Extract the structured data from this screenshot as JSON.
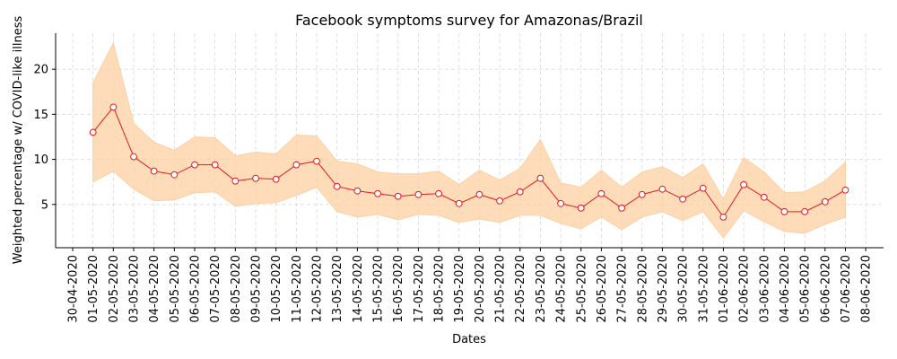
{
  "chart_data": {
    "type": "line",
    "title": "Facebook symptoms survey for Amazonas/Brazil",
    "xlabel": "Dates",
    "ylabel": "Weighted percentage w/ COVID-like illness",
    "x_ticks": [
      "30-04-2020",
      "01-05-2020",
      "02-05-2020",
      "03-05-2020",
      "04-05-2020",
      "05-05-2020",
      "06-05-2020",
      "07-05-2020",
      "08-05-2020",
      "09-05-2020",
      "10-05-2020",
      "11-05-2020",
      "12-05-2020",
      "13-05-2020",
      "14-05-2020",
      "15-05-2020",
      "16-05-2020",
      "17-05-2020",
      "18-05-2020",
      "19-05-2020",
      "20-05-2020",
      "21-05-2020",
      "22-05-2020",
      "23-05-2020",
      "24-05-2020",
      "25-05-2020",
      "26-05-2020",
      "27-05-2020",
      "28-05-2020",
      "29-05-2020",
      "30-05-2020",
      "31-05-2020",
      "01-06-2020",
      "02-06-2020",
      "03-06-2020",
      "04-06-2020",
      "05-06-2020",
      "06-06-2020",
      "07-06-2020",
      "08-06-2020"
    ],
    "x": [
      "01-05-2020",
      "02-05-2020",
      "03-05-2020",
      "04-05-2020",
      "05-05-2020",
      "06-05-2020",
      "07-05-2020",
      "08-05-2020",
      "09-05-2020",
      "10-05-2020",
      "11-05-2020",
      "12-05-2020",
      "13-05-2020",
      "14-05-2020",
      "15-05-2020",
      "16-05-2020",
      "17-05-2020",
      "18-05-2020",
      "19-05-2020",
      "20-05-2020",
      "21-05-2020",
      "22-05-2020",
      "23-05-2020",
      "24-05-2020",
      "25-05-2020",
      "26-05-2020",
      "27-05-2020",
      "28-05-2020",
      "29-05-2020",
      "30-05-2020",
      "31-05-2020",
      "01-06-2020",
      "02-06-2020",
      "03-06-2020",
      "04-06-2020",
      "05-06-2020",
      "06-06-2020",
      "07-06-2020"
    ],
    "series": [
      {
        "values": [
          13.0,
          15.8,
          10.3,
          8.7,
          8.3,
          9.4,
          9.4,
          7.6,
          7.9,
          7.8,
          9.4,
          9.8,
          7.0,
          6.5,
          6.2,
          5.9,
          6.1,
          6.2,
          5.1,
          6.1,
          5.4,
          6.4,
          7.9,
          5.1,
          4.6,
          6.2,
          4.6,
          6.1,
          6.7,
          5.6,
          6.8,
          3.6,
          7.2,
          5.8,
          4.2,
          4.2,
          5.3,
          6.6
        ],
        "lower": [
          7.5,
          8.7,
          6.7,
          5.4,
          5.5,
          6.3,
          6.4,
          4.8,
          5.1,
          5.2,
          6.0,
          6.9,
          4.2,
          3.6,
          3.9,
          3.3,
          3.9,
          3.8,
          3.0,
          3.4,
          3.0,
          3.8,
          3.8,
          2.9,
          2.3,
          3.6,
          2.2,
          3.6,
          4.2,
          3.2,
          4.2,
          1.3,
          4.3,
          3.1,
          2.0,
          1.8,
          2.8,
          3.6
        ],
        "upper": [
          18.5,
          22.9,
          14.0,
          11.9,
          11.0,
          12.5,
          12.4,
          10.4,
          10.8,
          10.6,
          12.7,
          12.6,
          9.8,
          9.5,
          8.6,
          8.4,
          8.4,
          8.7,
          7.2,
          8.8,
          7.7,
          9.0,
          12.2,
          7.4,
          6.9,
          8.8,
          6.9,
          8.6,
          9.2,
          8.0,
          9.5,
          5.6,
          10.2,
          8.6,
          6.3,
          6.4,
          7.6,
          9.7
        ]
      }
    ],
    "y_ticks": [
      5,
      10,
      15,
      20
    ],
    "ylim": [
      0.2,
      24.0
    ],
    "grid": true,
    "colors": {
      "line": "#e31a1c",
      "marker_edge": "#e31a1c",
      "marker_face": "#ffffff",
      "band": "#fdd0a2",
      "grid": "#d9d9d9"
    }
  }
}
